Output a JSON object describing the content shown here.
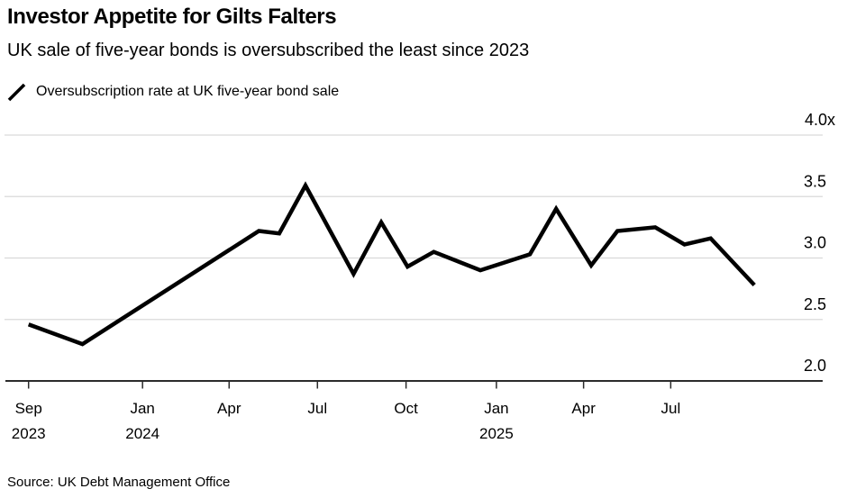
{
  "header": {
    "title": "Investor Appetite for Gilts Falters",
    "subtitle": "UK sale of five-year bonds is oversubscribed the least since 2023"
  },
  "legend": {
    "label": "Oversubscription rate at UK five-year bond sale"
  },
  "source": {
    "text": "Source: UK Debt Management Office"
  },
  "colors": {
    "line": "#000000",
    "grid": "#d9d9d9",
    "axis": "#2b2b2b",
    "text": "#000000",
    "background": "#ffffff"
  },
  "chart_data": {
    "type": "line",
    "title": "Investor Appetite for Gilts Falters",
    "subtitle": "UK sale of five-year bonds is oversubscribed the least since 2023",
    "series_name": "Oversubscription rate at UK five-year bond sale",
    "grid": "horizontal-only",
    "legend_position": "top-left",
    "y_axis_side": "right",
    "ylim": [
      2.0,
      4.0
    ],
    "y_ticks": [
      {
        "value": 4.0,
        "label": "4.0x"
      },
      {
        "value": 3.5,
        "label": "3.5"
      },
      {
        "value": 3.0,
        "label": "3.0"
      },
      {
        "value": 2.5,
        "label": "2.5"
      },
      {
        "value": 2.0,
        "label": "2.0"
      }
    ],
    "x_ticks": [
      {
        "t": 0.0,
        "month": "Sep",
        "year": "2023"
      },
      {
        "t": 3.91,
        "month": "Jan",
        "year": "2024"
      },
      {
        "t": 6.88,
        "month": "Apr",
        "year": ""
      },
      {
        "t": 9.91,
        "month": "Jul",
        "year": ""
      },
      {
        "t": 12.95,
        "month": "Oct",
        "year": ""
      },
      {
        "t": 16.05,
        "month": "Jan",
        "year": "2025"
      },
      {
        "t": 19.04,
        "month": "Apr",
        "year": ""
      },
      {
        "t": 22.03,
        "month": "Jul",
        "year": ""
      }
    ],
    "points": [
      {
        "date": "Sep 2023",
        "t": 0.0,
        "value": 2.46
      },
      {
        "date": "Nov 2023",
        "t": 1.85,
        "value": 2.3
      },
      {
        "date": "Apr 2024",
        "t": 7.9,
        "value": 3.22
      },
      {
        "date": "May 2024",
        "t": 8.6,
        "value": 3.2
      },
      {
        "date": "Jun 2024",
        "t": 9.5,
        "value": 3.59
      },
      {
        "date": "Aug 2024",
        "t": 11.15,
        "value": 2.87
      },
      {
        "date": "Sep 2024",
        "t": 12.1,
        "value": 3.29
      },
      {
        "date": "Oct 2024",
        "t": 13.0,
        "value": 2.93
      },
      {
        "date": "Nov 2024",
        "t": 13.9,
        "value": 3.05
      },
      {
        "date": "Dec 2024",
        "t": 15.5,
        "value": 2.9
      },
      {
        "date": "Feb 2025",
        "t": 17.2,
        "value": 3.03
      },
      {
        "date": "Mar 2025",
        "t": 18.1,
        "value": 3.4
      },
      {
        "date": "Apr 2025",
        "t": 19.3,
        "value": 2.94
      },
      {
        "date": "May 2025",
        "t": 20.2,
        "value": 3.22
      },
      {
        "date": "Jun 2025",
        "t": 21.5,
        "value": 3.25
      },
      {
        "date": "Jul 2025",
        "t": 22.5,
        "value": 3.11
      },
      {
        "date": "Aug 2025",
        "t": 23.4,
        "value": 3.16
      },
      {
        "date": "Sep 2025",
        "t": 24.9,
        "value": 2.78
      }
    ]
  }
}
